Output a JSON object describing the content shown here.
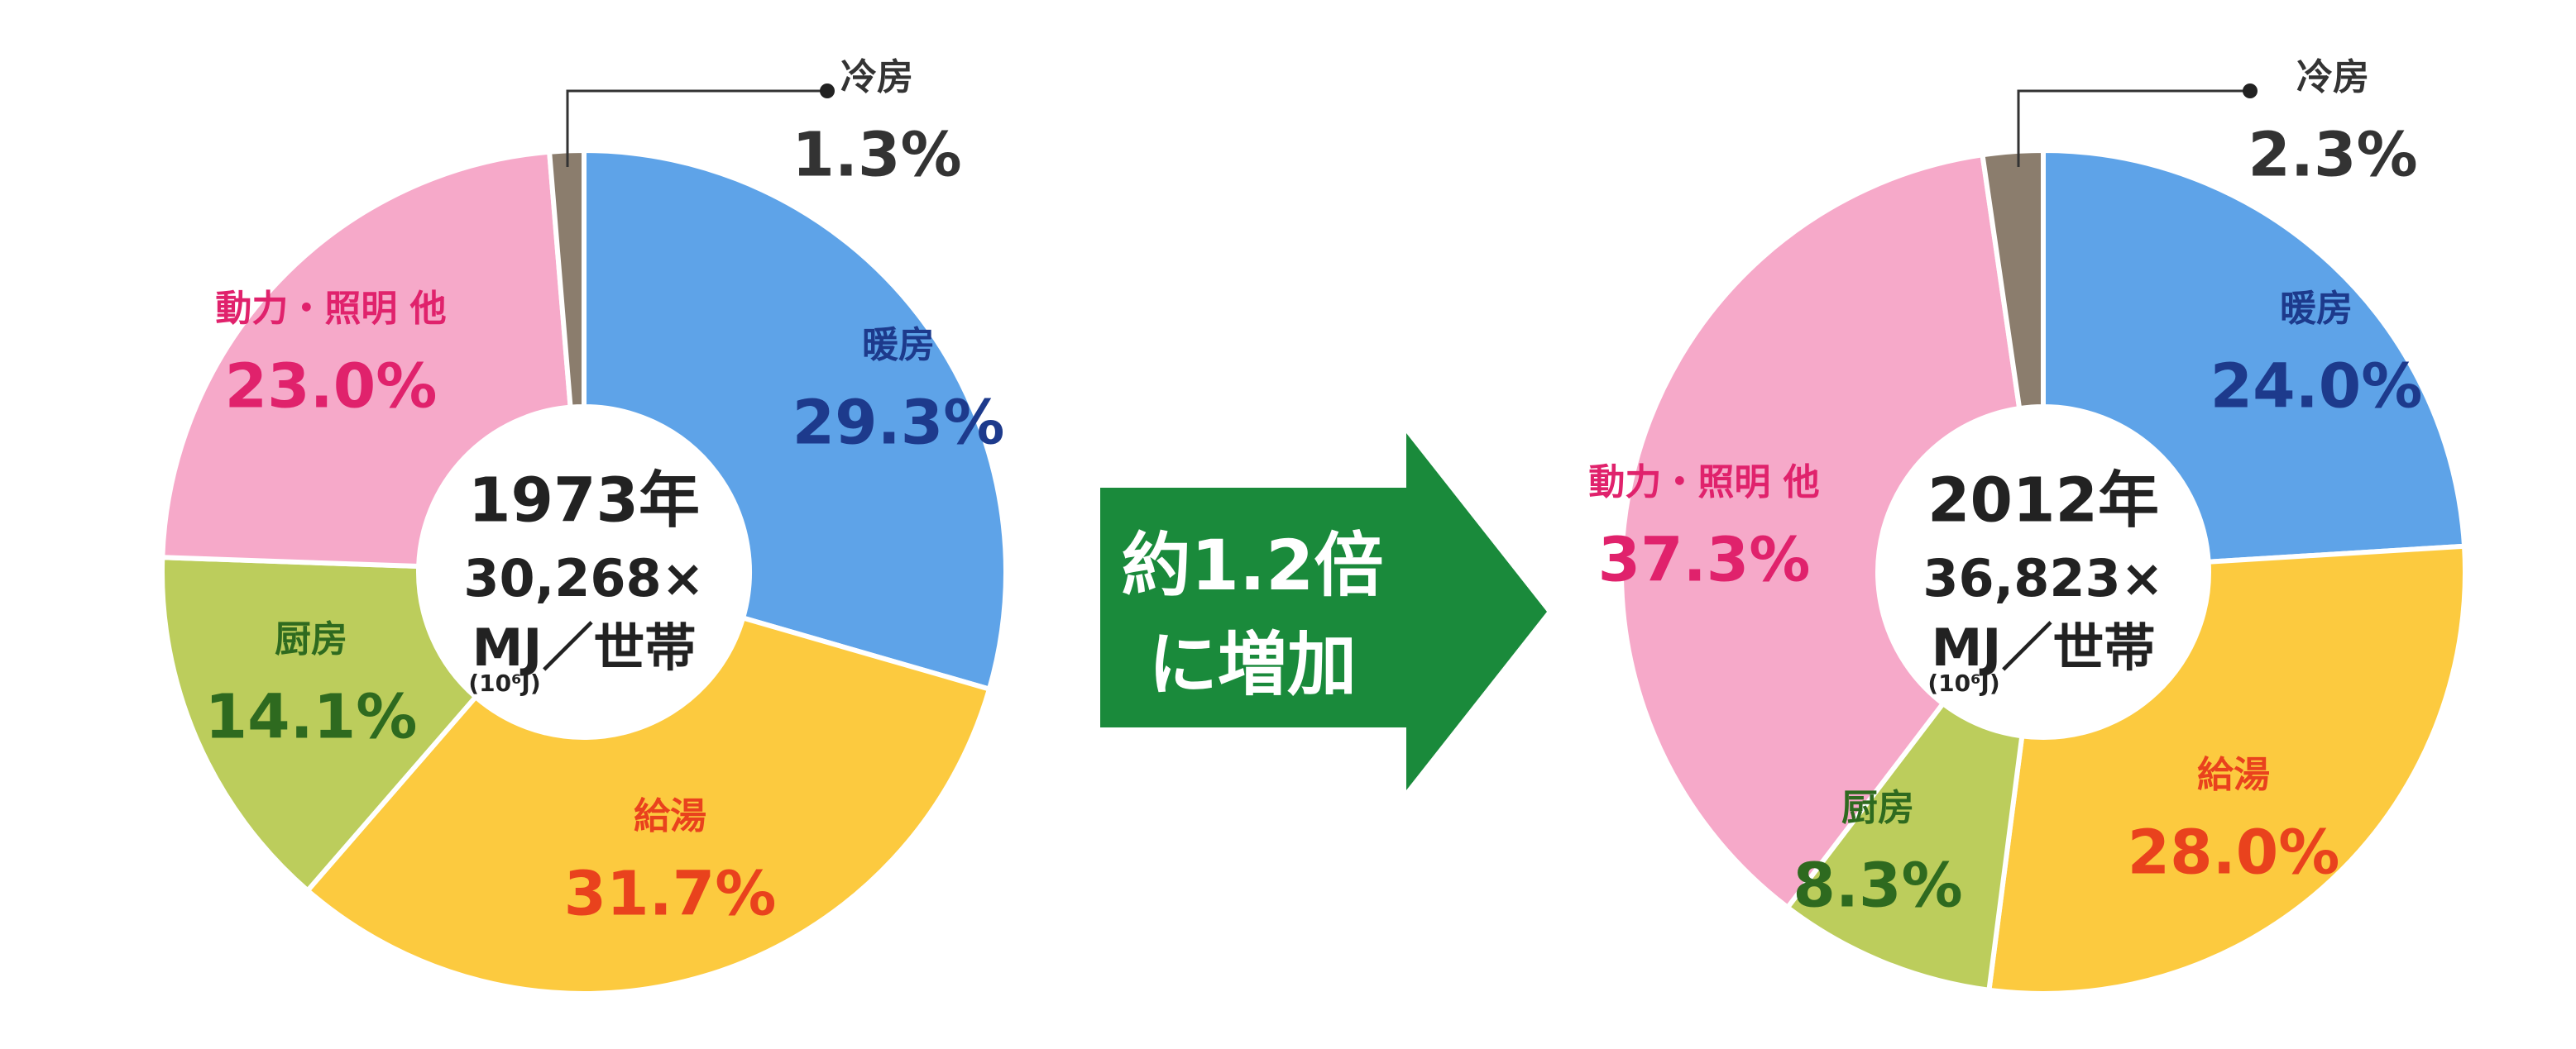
{
  "chart_data": [
    {
      "type": "pie",
      "center_label": [
        "1973年",
        "30,268×",
        "MJ／世帯",
        "(10⁶J)"
      ],
      "categories": [
        "暖房",
        "給湯",
        "厨房",
        "動力・照明 他",
        "冷房"
      ],
      "values": [
        29.3,
        31.7,
        14.1,
        23.0,
        1.3
      ],
      "value_labels": [
        "29.3%",
        "31.7%",
        "14.1%",
        "23.0%",
        "1.3%"
      ],
      "colors": [
        "#5ea3e8",
        "#fcca3f",
        "#bccd5c",
        "#f6a9c9",
        "#8b7d6d"
      ],
      "label_colors": [
        "#1d3a8c",
        "#e9421d",
        "#2e6a1f",
        "#e0226c",
        "#333333"
      ]
    },
    {
      "type": "pie",
      "center_label": [
        "2012年",
        "36,823×",
        "MJ／世帯",
        "(10⁶J)"
      ],
      "categories": [
        "暖房",
        "給湯",
        "厨房",
        "動力・照明 他",
        "冷房"
      ],
      "values": [
        24.0,
        28.0,
        8.3,
        37.3,
        2.3
      ],
      "value_labels": [
        "24.0%",
        "28.0%",
        "8.3%",
        "37.3%",
        "2.3%"
      ],
      "colors": [
        "#5ea3e8",
        "#fcca3f",
        "#bccd5c",
        "#f6a9c9",
        "#8b7d6d"
      ],
      "label_colors": [
        "#1d3a8c",
        "#e9421d",
        "#2e6a1f",
        "#e0226c",
        "#333333"
      ]
    }
  ],
  "arrow": {
    "text": [
      "約1.2倍",
      "に増加"
    ]
  }
}
